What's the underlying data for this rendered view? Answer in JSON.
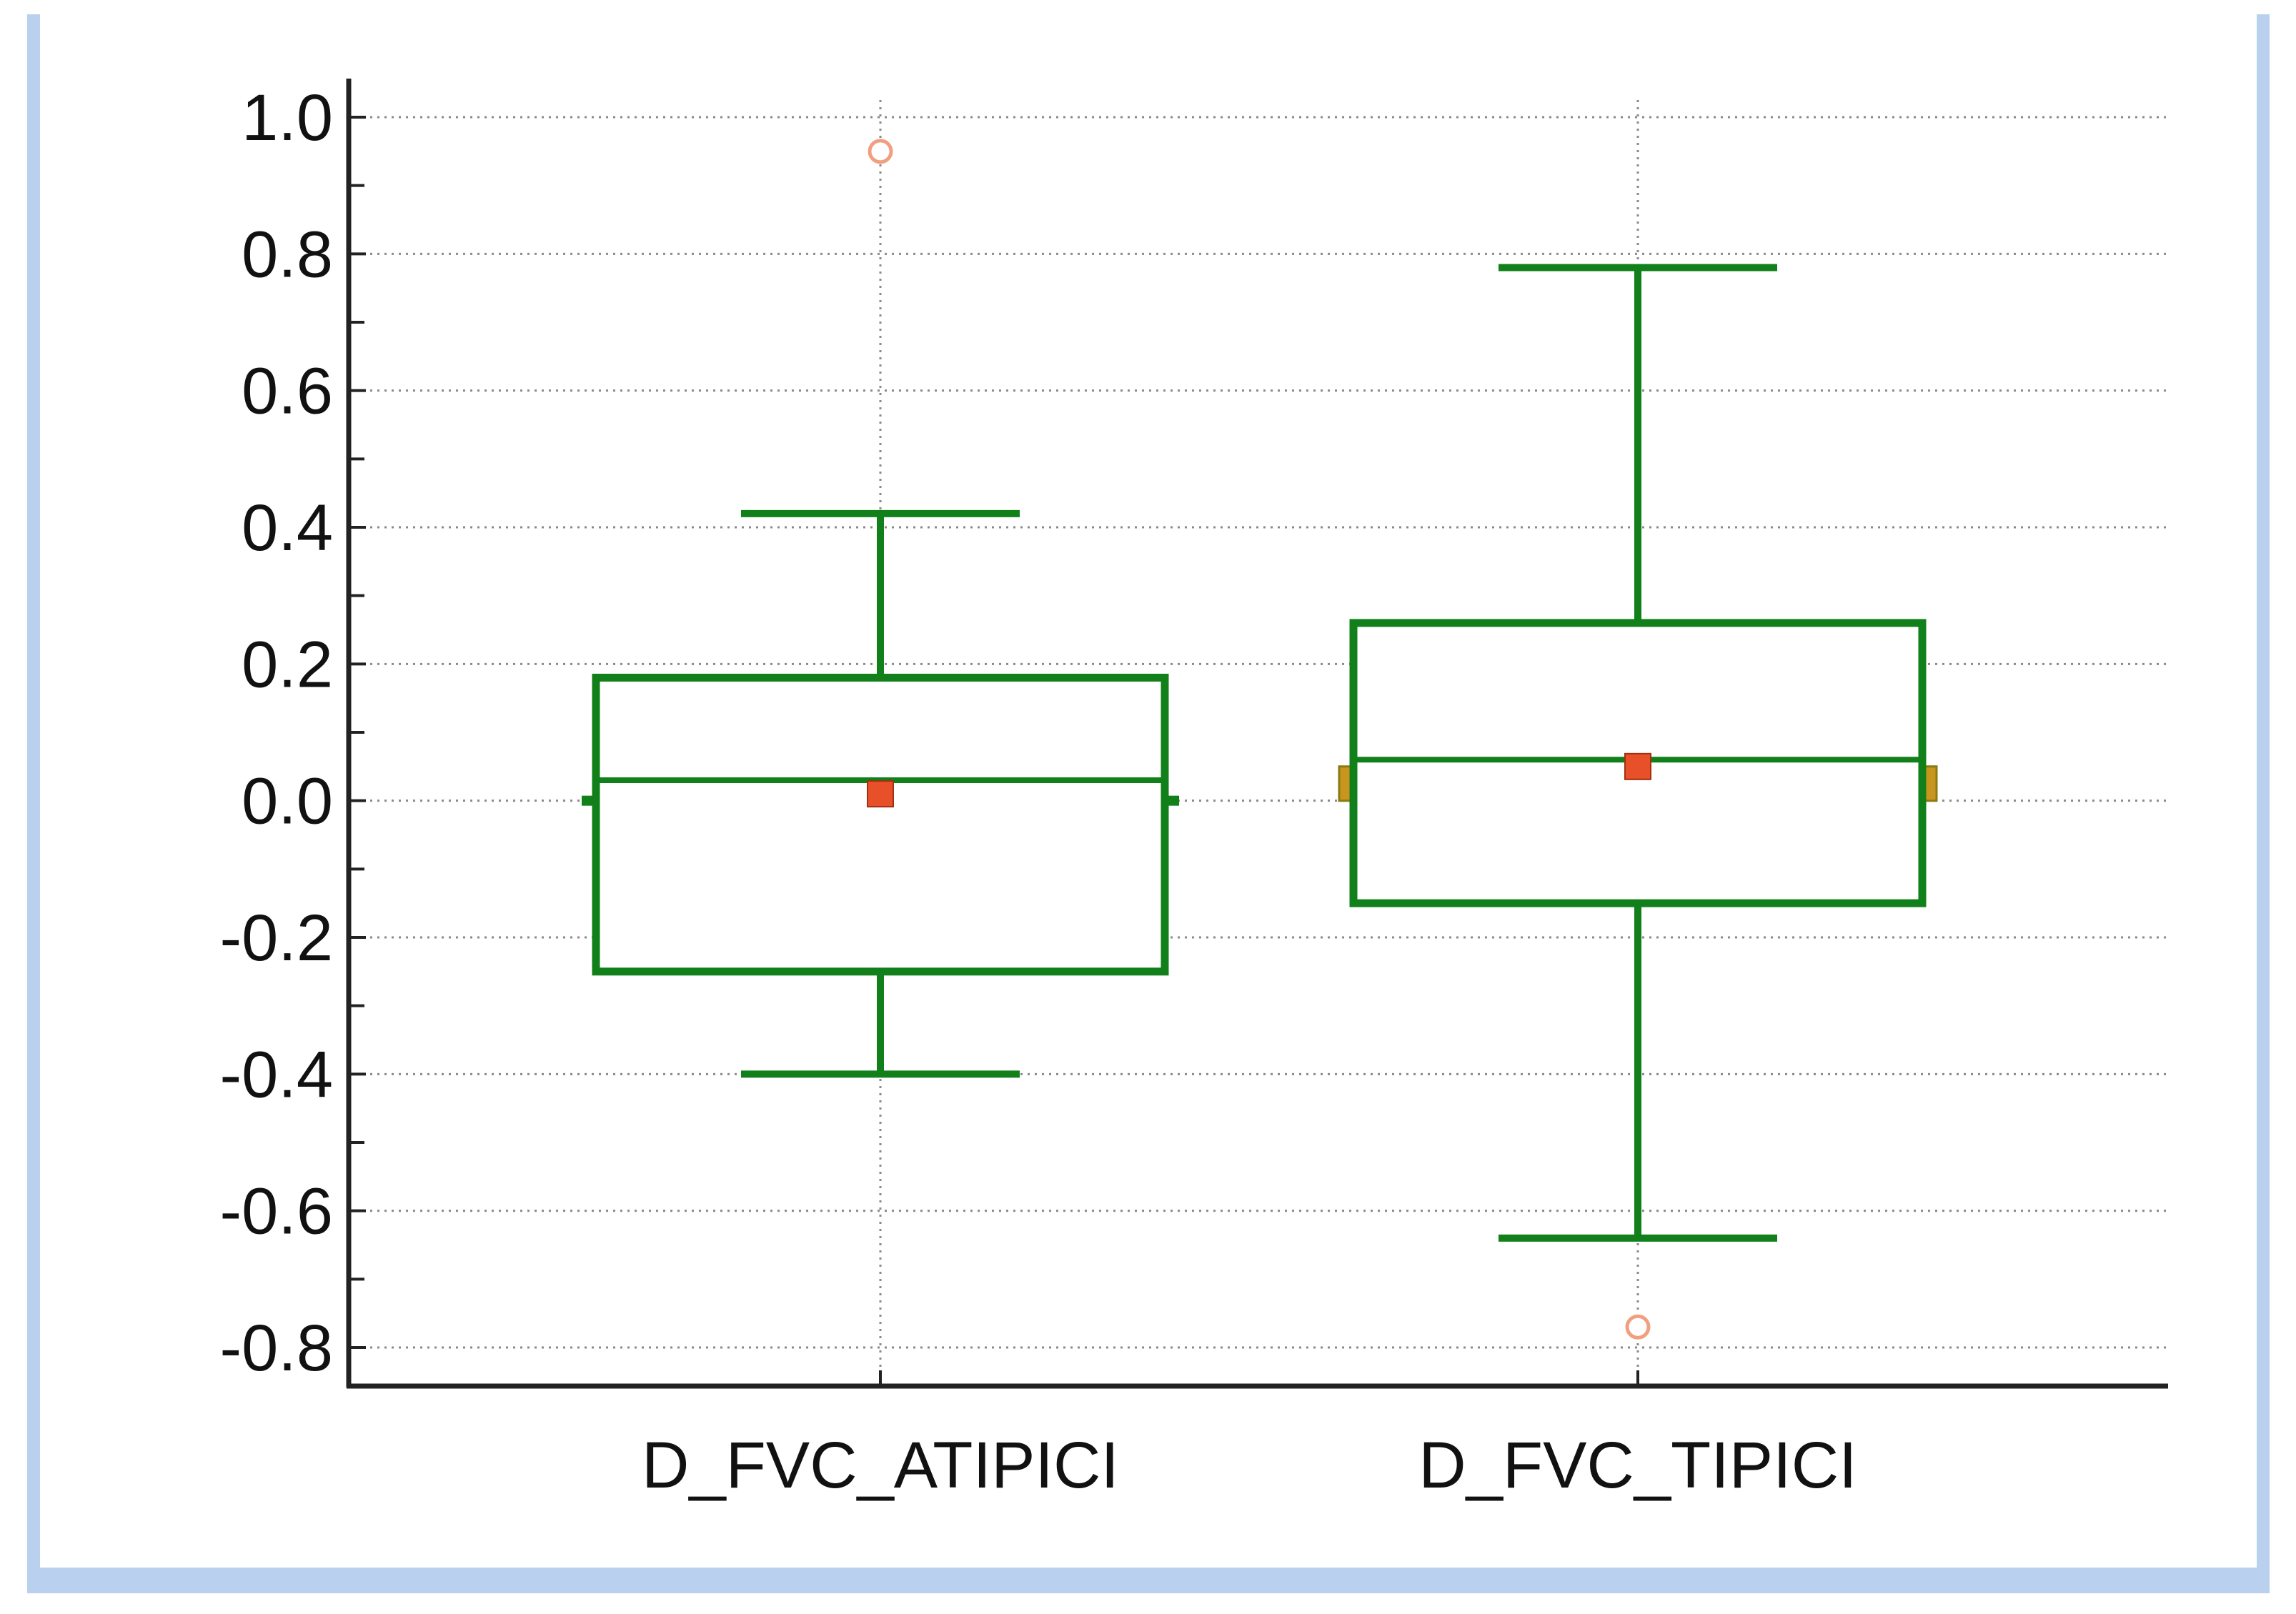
{
  "chart_data": {
    "type": "box",
    "categories": [
      "D_FVC_ATIPICI",
      "D_FVC_TIPICI"
    ],
    "boxes": [
      {
        "name": "D_FVC_ATIPICI",
        "whisker_low": -0.4,
        "q1": -0.25,
        "median": 0.03,
        "q3": 0.18,
        "whisker_high": 0.42,
        "mean": 0.01,
        "ci_marker": 0.0,
        "outliers": [
          0.95
        ]
      },
      {
        "name": "D_FVC_TIPICI",
        "whisker_low": -0.64,
        "q1": -0.15,
        "median": 0.06,
        "q3": 0.26,
        "whisker_high": 0.78,
        "mean": 0.05,
        "ci_marker": 0.025,
        "outliers": [
          -0.77
        ]
      }
    ],
    "ylim": [
      -0.85,
      1.05
    ],
    "yticks": [
      "1.0",
      "0.8",
      "0.6",
      "0.4",
      "0.2",
      "0.0",
      "-0.2",
      "-0.4",
      "-0.6",
      "-0.8"
    ],
    "ytick_values": [
      1.0,
      0.8,
      0.6,
      0.4,
      0.2,
      0.0,
      -0.2,
      -0.4,
      -0.6,
      -0.8
    ],
    "grid": true,
    "colors": {
      "box": "#11801a",
      "mean": "#e8502a",
      "outlier": "#f0a080",
      "ci_marker": "#c8961e",
      "grid": "#8a8a8a",
      "axis": "#222222",
      "frame": "#b9d1ee"
    }
  }
}
